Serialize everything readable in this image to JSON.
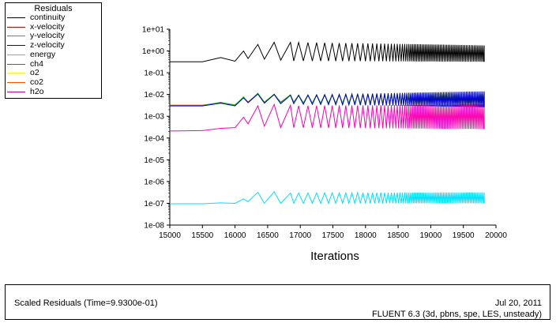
{
  "chart_data": {
    "type": "line",
    "title": "Scaled Residuals",
    "xlabel": "Iterations",
    "ylabel": "",
    "xlim": [
      15000,
      20000
    ],
    "ylim_log10": [
      -8,
      1
    ],
    "x_ticks": [
      "15000",
      "15500",
      "16000",
      "16500",
      "17000",
      "17500",
      "18000",
      "18500",
      "19000",
      "19500",
      "20000"
    ],
    "y_ticks": [
      "1e+01",
      "1e+00",
      "1e-01",
      "1e-02",
      "1e-03",
      "1e-04",
      "1e-05",
      "1e-06",
      "1e-07",
      "1e-08"
    ],
    "legend_title": "Residuals",
    "legend_position": "top-left",
    "series": [
      {
        "name": "continuity",
        "color": "#000000",
        "points": [
          [
            15000,
            0.32
          ],
          [
            15500,
            0.32
          ],
          [
            15780,
            0.5
          ],
          [
            16000,
            0.34
          ],
          [
            16130,
            1.0
          ],
          [
            16200,
            0.45
          ],
          [
            16350,
            2.0
          ],
          [
            16450,
            0.42
          ],
          [
            16600,
            2.5
          ],
          [
            16700,
            0.38
          ],
          [
            16850,
            2.5
          ],
          [
            16900,
            0.35
          ]
        ],
        "osc": {
          "start": 16900,
          "end": 19820,
          "hi": [
            2.5,
            1.8
          ],
          "lo": [
            0.35,
            0.32
          ],
          "period_start": 150,
          "period_end": 25
        }
      },
      {
        "name": "x-velocity",
        "color": "#e00000",
        "points": [
          [
            15000,
            0.0032
          ],
          [
            15500,
            0.0032
          ],
          [
            15780,
            0.0042
          ],
          [
            16000,
            0.0033
          ],
          [
            16130,
            0.0075
          ],
          [
            16200,
            0.0045
          ],
          [
            16350,
            0.011
          ],
          [
            16450,
            0.0045
          ],
          [
            16600,
            0.01
          ],
          [
            16700,
            0.0045
          ],
          [
            16850,
            0.0095
          ],
          [
            16900,
            0.0045
          ]
        ],
        "osc": {
          "start": 16900,
          "end": 19820,
          "hi": [
            0.009,
            0.011
          ],
          "lo": [
            0.0042,
            0.0035
          ],
          "period_start": 150,
          "period_end": 25
        }
      },
      {
        "name": "y-velocity",
        "color": "#00d000",
        "points": [
          [
            15000,
            0.0031
          ],
          [
            15500,
            0.0031
          ],
          [
            15780,
            0.0044
          ],
          [
            16000,
            0.0032
          ],
          [
            16130,
            0.0078
          ],
          [
            16200,
            0.0043
          ],
          [
            16350,
            0.0115
          ],
          [
            16450,
            0.0043
          ],
          [
            16600,
            0.0105
          ],
          [
            16700,
            0.0043
          ],
          [
            16850,
            0.0098
          ],
          [
            16900,
            0.0043
          ]
        ],
        "osc": {
          "start": 16900,
          "end": 19820,
          "hi": [
            0.0095,
            0.012
          ],
          "lo": [
            0.0041,
            0.0034
          ],
          "period_start": 150,
          "period_end": 25
        }
      },
      {
        "name": "z-velocity",
        "color": "#0000c8",
        "points": [
          [
            15000,
            0.003
          ],
          [
            15500,
            0.003
          ],
          [
            15780,
            0.004
          ],
          [
            16000,
            0.003
          ],
          [
            16130,
            0.007
          ],
          [
            16200,
            0.0042
          ],
          [
            16350,
            0.0105
          ],
          [
            16450,
            0.004
          ],
          [
            16600,
            0.01
          ],
          [
            16700,
            0.0038
          ],
          [
            16850,
            0.0092
          ],
          [
            16900,
            0.0038
          ]
        ],
        "osc": {
          "start": 16900,
          "end": 19820,
          "hi": [
            0.009,
            0.014
          ],
          "lo": [
            0.0036,
            0.0026
          ],
          "period_start": 150,
          "period_end": 25
        }
      },
      {
        "name": "energy",
        "color": "#00e0ff",
        "points": [
          [
            15000,
            9.5e-08
          ],
          [
            15500,
            9.5e-08
          ],
          [
            15780,
            1.05e-07
          ],
          [
            16000,
            1e-07
          ],
          [
            16130,
            1.6e-07
          ],
          [
            16200,
            1.2e-07
          ],
          [
            16350,
            3.2e-07
          ],
          [
            16450,
            1e-07
          ],
          [
            16600,
            3.4e-07
          ],
          [
            16700,
            1e-07
          ],
          [
            16850,
            3e-07
          ],
          [
            16900,
            1e-07
          ]
        ],
        "osc": {
          "start": 16900,
          "end": 19820,
          "hi": [
            3e-07,
            3.2e-07
          ],
          "lo": [
            1e-07,
            1e-07
          ],
          "period_start": 150,
          "period_end": 25
        }
      },
      {
        "name": "ch4",
        "color": "#ff00b0",
        "points": [
          [
            15000,
            0.00021
          ],
          [
            15500,
            0.00022
          ],
          [
            15780,
            0.00028
          ],
          [
            16000,
            0.0003
          ],
          [
            16130,
            0.0009
          ],
          [
            16200,
            0.00045
          ],
          [
            16350,
            0.003
          ],
          [
            16450,
            0.00035
          ],
          [
            16600,
            0.0035
          ],
          [
            16700,
            0.0003
          ],
          [
            16850,
            0.0032
          ],
          [
            16900,
            0.0003
          ]
        ],
        "osc": {
          "start": 16900,
          "end": 19820,
          "hi": [
            0.003,
            0.0035
          ],
          "lo": [
            0.0003,
            0.00026
          ],
          "period_start": 150,
          "period_end": 25
        }
      },
      {
        "name": "o2",
        "color": "#ffff00",
        "points": [],
        "osc": null
      },
      {
        "name": "co2",
        "color": "#ff5000",
        "points": [],
        "osc": null
      },
      {
        "name": "h2o",
        "color": "#c00090",
        "points": [],
        "osc": null
      }
    ]
  },
  "footer": {
    "left_text": "Scaled Residuals  (Time=9.9300e-01)",
    "date": "Jul 20, 2011",
    "version": "FLUENT 6.3 (3d, pbns, spe, LES, unsteady)"
  }
}
